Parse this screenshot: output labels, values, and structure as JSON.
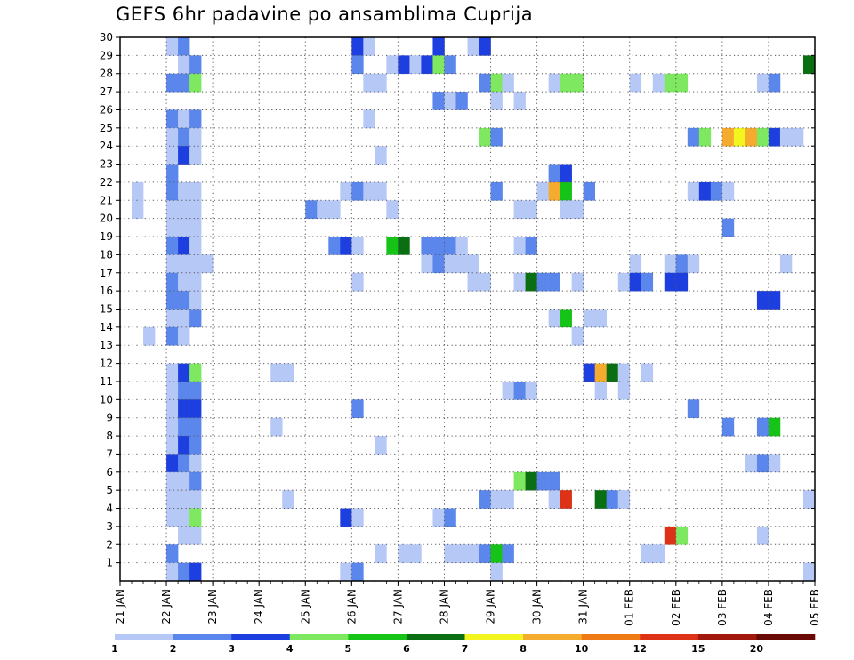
{
  "chart_data": {
    "type": "heatmap",
    "title": "GEFS 6hr padavine po ansamblima Cuprija",
    "xlabel": "",
    "ylabel": "",
    "x_ticks": [
      "21 JAN",
      "22 JAN",
      "23 JAN",
      "24 JAN",
      "25 JAN",
      "26 JAN",
      "27 JAN",
      "28 JAN",
      "29 JAN",
      "30 JAN",
      "31 JAN",
      "01 FEB",
      "02 FEB",
      "03 FEB",
      "04 FEB",
      "05 FEB"
    ],
    "y_ticks": [
      "1",
      "2",
      "3",
      "4",
      "5",
      "6",
      "7",
      "8",
      "9",
      "10",
      "11",
      "12",
      "13",
      "14",
      "15",
      "16",
      "17",
      "18",
      "19",
      "20",
      "21",
      "22",
      "23",
      "24",
      "25",
      "26",
      "27",
      "28",
      "29",
      "30"
    ],
    "time_steps_per_day": 4,
    "x_range_steps": [
      0,
      60
    ],
    "y_range": [
      0,
      30
    ],
    "grid": true,
    "legend_placement": "bottom",
    "color_scale": {
      "levels": [
        "1",
        "2",
        "3",
        "4",
        "5",
        "6",
        "7",
        "8",
        "10",
        "12",
        "15",
        "20"
      ],
      "colors": [
        "#b6c8f6",
        "#5b86ec",
        "#1e3fe0",
        "#7ee861",
        "#15c417",
        "#0a6f12",
        "#f3f51e",
        "#f5ab2e",
        "#ef7a15",
        "#de3217",
        "#a1180c",
        "#6a0a06"
      ]
    },
    "cells": [
      [
        30,
        4,
        1
      ],
      [
        30,
        5,
        2
      ],
      [
        30,
        20,
        3
      ],
      [
        30,
        21,
        1
      ],
      [
        30,
        27,
        3
      ],
      [
        30,
        30,
        1
      ],
      [
        30,
        31,
        3
      ],
      [
        29,
        5,
        1
      ],
      [
        29,
        6,
        2
      ],
      [
        29,
        20,
        2
      ],
      [
        29,
        23,
        1
      ],
      [
        29,
        24,
        3
      ],
      [
        29,
        25,
        1
      ],
      [
        29,
        26,
        3
      ],
      [
        29,
        27,
        4
      ],
      [
        29,
        28,
        2
      ],
      [
        29,
        59,
        6
      ],
      [
        28,
        4,
        2
      ],
      [
        28,
        5,
        2
      ],
      [
        28,
        6,
        4
      ],
      [
        28,
        21,
        1
      ],
      [
        28,
        22,
        1
      ],
      [
        28,
        31,
        2
      ],
      [
        28,
        32,
        4
      ],
      [
        28,
        33,
        1
      ],
      [
        28,
        37,
        1
      ],
      [
        28,
        38,
        4
      ],
      [
        28,
        39,
        4
      ],
      [
        28,
        44,
        1
      ],
      [
        28,
        46,
        1
      ],
      [
        28,
        47,
        4
      ],
      [
        28,
        48,
        4
      ],
      [
        28,
        55,
        1
      ],
      [
        28,
        56,
        2
      ],
      [
        27,
        27,
        2
      ],
      [
        27,
        28,
        1
      ],
      [
        27,
        29,
        2
      ],
      [
        27,
        32,
        1
      ],
      [
        27,
        34,
        1
      ],
      [
        26,
        4,
        2
      ],
      [
        26,
        5,
        1
      ],
      [
        26,
        6,
        2
      ],
      [
        26,
        21,
        1
      ],
      [
        25,
        4,
        1
      ],
      [
        25,
        5,
        2
      ],
      [
        25,
        6,
        1
      ],
      [
        25,
        31,
        4
      ],
      [
        25,
        32,
        2
      ],
      [
        25,
        49,
        2
      ],
      [
        25,
        50,
        4
      ],
      [
        25,
        52,
        8
      ],
      [
        25,
        53,
        7
      ],
      [
        25,
        54,
        8
      ],
      [
        25,
        55,
        4
      ],
      [
        25,
        56,
        3
      ],
      [
        25,
        57,
        1
      ],
      [
        25,
        58,
        1
      ],
      [
        24,
        4,
        1
      ],
      [
        24,
        5,
        3
      ],
      [
        24,
        6,
        1
      ],
      [
        24,
        22,
        1
      ],
      [
        23,
        4,
        2
      ],
      [
        23,
        37,
        2
      ],
      [
        23,
        38,
        3
      ],
      [
        22,
        1,
        1
      ],
      [
        22,
        4,
        2
      ],
      [
        22,
        5,
        1
      ],
      [
        22,
        6,
        1
      ],
      [
        22,
        19,
        1
      ],
      [
        22,
        20,
        2
      ],
      [
        22,
        21,
        1
      ],
      [
        22,
        22,
        1
      ],
      [
        22,
        32,
        2
      ],
      [
        22,
        36,
        1
      ],
      [
        22,
        37,
        8
      ],
      [
        22,
        38,
        5
      ],
      [
        22,
        40,
        2
      ],
      [
        22,
        49,
        1
      ],
      [
        22,
        50,
        3
      ],
      [
        22,
        51,
        2
      ],
      [
        22,
        52,
        1
      ],
      [
        21,
        1,
        1
      ],
      [
        21,
        4,
        1
      ],
      [
        21,
        5,
        1
      ],
      [
        21,
        6,
        1
      ],
      [
        21,
        16,
        2
      ],
      [
        21,
        17,
        1
      ],
      [
        21,
        18,
        1
      ],
      [
        21,
        23,
        1
      ],
      [
        21,
        34,
        1
      ],
      [
        21,
        35,
        1
      ],
      [
        21,
        38,
        1
      ],
      [
        21,
        39,
        1
      ],
      [
        20,
        4,
        1
      ],
      [
        20,
        5,
        1
      ],
      [
        20,
        6,
        1
      ],
      [
        20,
        52,
        2
      ],
      [
        19,
        4,
        2
      ],
      [
        19,
        5,
        3
      ],
      [
        19,
        6,
        1
      ],
      [
        19,
        18,
        2
      ],
      [
        19,
        19,
        3
      ],
      [
        19,
        20,
        1
      ],
      [
        19,
        23,
        5
      ],
      [
        19,
        24,
        6
      ],
      [
        19,
        26,
        2
      ],
      [
        19,
        27,
        2
      ],
      [
        19,
        28,
        2
      ],
      [
        19,
        29,
        1
      ],
      [
        19,
        34,
        1
      ],
      [
        19,
        35,
        2
      ],
      [
        18,
        4,
        1
      ],
      [
        18,
        5,
        1
      ],
      [
        18,
        6,
        1
      ],
      [
        18,
        7,
        1
      ],
      [
        18,
        26,
        1
      ],
      [
        18,
        27,
        2
      ],
      [
        18,
        28,
        1
      ],
      [
        18,
        29,
        1
      ],
      [
        18,
        30,
        1
      ],
      [
        18,
        44,
        1
      ],
      [
        18,
        47,
        1
      ],
      [
        18,
        48,
        2
      ],
      [
        18,
        49,
        1
      ],
      [
        18,
        57,
        1
      ],
      [
        17,
        4,
        2
      ],
      [
        17,
        5,
        1
      ],
      [
        17,
        6,
        1
      ],
      [
        17,
        20,
        1
      ],
      [
        17,
        30,
        1
      ],
      [
        17,
        31,
        1
      ],
      [
        17,
        34,
        1
      ],
      [
        17,
        35,
        6
      ],
      [
        17,
        36,
        2
      ],
      [
        17,
        37,
        2
      ],
      [
        17,
        39,
        1
      ],
      [
        17,
        43,
        1
      ],
      [
        17,
        44,
        3
      ],
      [
        17,
        45,
        2
      ],
      [
        17,
        47,
        3
      ],
      [
        17,
        48,
        3
      ],
      [
        16,
        4,
        2
      ],
      [
        16,
        5,
        2
      ],
      [
        16,
        6,
        1
      ],
      [
        16,
        55,
        3
      ],
      [
        16,
        56,
        3
      ],
      [
        15,
        4,
        1
      ],
      [
        15,
        5,
        1
      ],
      [
        15,
        6,
        2
      ],
      [
        15,
        37,
        1
      ],
      [
        15,
        38,
        5
      ],
      [
        15,
        40,
        1
      ],
      [
        15,
        41,
        1
      ],
      [
        14,
        2,
        1
      ],
      [
        14,
        4,
        2
      ],
      [
        14,
        5,
        1
      ],
      [
        14,
        39,
        1
      ],
      [
        12,
        4,
        1
      ],
      [
        12,
        5,
        3
      ],
      [
        12,
        6,
        4
      ],
      [
        12,
        13,
        1
      ],
      [
        12,
        14,
        1
      ],
      [
        12,
        40,
        3
      ],
      [
        12,
        41,
        8
      ],
      [
        12,
        42,
        6
      ],
      [
        12,
        43,
        1
      ],
      [
        12,
        45,
        1
      ],
      [
        11,
        4,
        1
      ],
      [
        11,
        5,
        2
      ],
      [
        11,
        6,
        2
      ],
      [
        11,
        33,
        1
      ],
      [
        11,
        34,
        2
      ],
      [
        11,
        35,
        1
      ],
      [
        11,
        41,
        1
      ],
      [
        11,
        43,
        1
      ],
      [
        10,
        4,
        1
      ],
      [
        10,
        5,
        3
      ],
      [
        10,
        6,
        3
      ],
      [
        10,
        20,
        2
      ],
      [
        10,
        49,
        2
      ],
      [
        9,
        4,
        1
      ],
      [
        9,
        5,
        2
      ],
      [
        9,
        6,
        2
      ],
      [
        9,
        13,
        1
      ],
      [
        9,
        52,
        2
      ],
      [
        9,
        55,
        2
      ],
      [
        9,
        56,
        5
      ],
      [
        8,
        4,
        1
      ],
      [
        8,
        5,
        3
      ],
      [
        8,
        6,
        2
      ],
      [
        8,
        22,
        1
      ],
      [
        7,
        4,
        3
      ],
      [
        7,
        5,
        2
      ],
      [
        7,
        6,
        1
      ],
      [
        7,
        54,
        1
      ],
      [
        7,
        55,
        2
      ],
      [
        7,
        56,
        1
      ],
      [
        6,
        4,
        1
      ],
      [
        6,
        5,
        1
      ],
      [
        6,
        6,
        2
      ],
      [
        6,
        34,
        4
      ],
      [
        6,
        35,
        6
      ],
      [
        6,
        36,
        2
      ],
      [
        6,
        37,
        2
      ],
      [
        5,
        4,
        1
      ],
      [
        5,
        5,
        1
      ],
      [
        5,
        6,
        1
      ],
      [
        5,
        14,
        1
      ],
      [
        5,
        31,
        2
      ],
      [
        5,
        32,
        1
      ],
      [
        5,
        33,
        1
      ],
      [
        5,
        37,
        1
      ],
      [
        5,
        38,
        10
      ],
      [
        5,
        41,
        6
      ],
      [
        5,
        42,
        2
      ],
      [
        5,
        43,
        1
      ],
      [
        5,
        59,
        1
      ],
      [
        4,
        4,
        1
      ],
      [
        4,
        5,
        1
      ],
      [
        4,
        6,
        4
      ],
      [
        4,
        19,
        3
      ],
      [
        4,
        20,
        1
      ],
      [
        4,
        27,
        1
      ],
      [
        4,
        28,
        2
      ],
      [
        3,
        5,
        1
      ],
      [
        3,
        6,
        1
      ],
      [
        3,
        47,
        10
      ],
      [
        3,
        48,
        4
      ],
      [
        3,
        55,
        1
      ],
      [
        2,
        4,
        2
      ],
      [
        2,
        22,
        1
      ],
      [
        2,
        24,
        1
      ],
      [
        2,
        25,
        1
      ],
      [
        2,
        28,
        1
      ],
      [
        2,
        29,
        1
      ],
      [
        2,
        30,
        1
      ],
      [
        2,
        31,
        2
      ],
      [
        2,
        32,
        5
      ],
      [
        2,
        33,
        2
      ],
      [
        2,
        45,
        1
      ],
      [
        2,
        46,
        1
      ],
      [
        1,
        4,
        1
      ],
      [
        1,
        5,
        2
      ],
      [
        1,
        6,
        3
      ],
      [
        1,
        19,
        1
      ],
      [
        1,
        20,
        2
      ],
      [
        1,
        32,
        1
      ],
      [
        1,
        59,
        1
      ]
    ]
  }
}
